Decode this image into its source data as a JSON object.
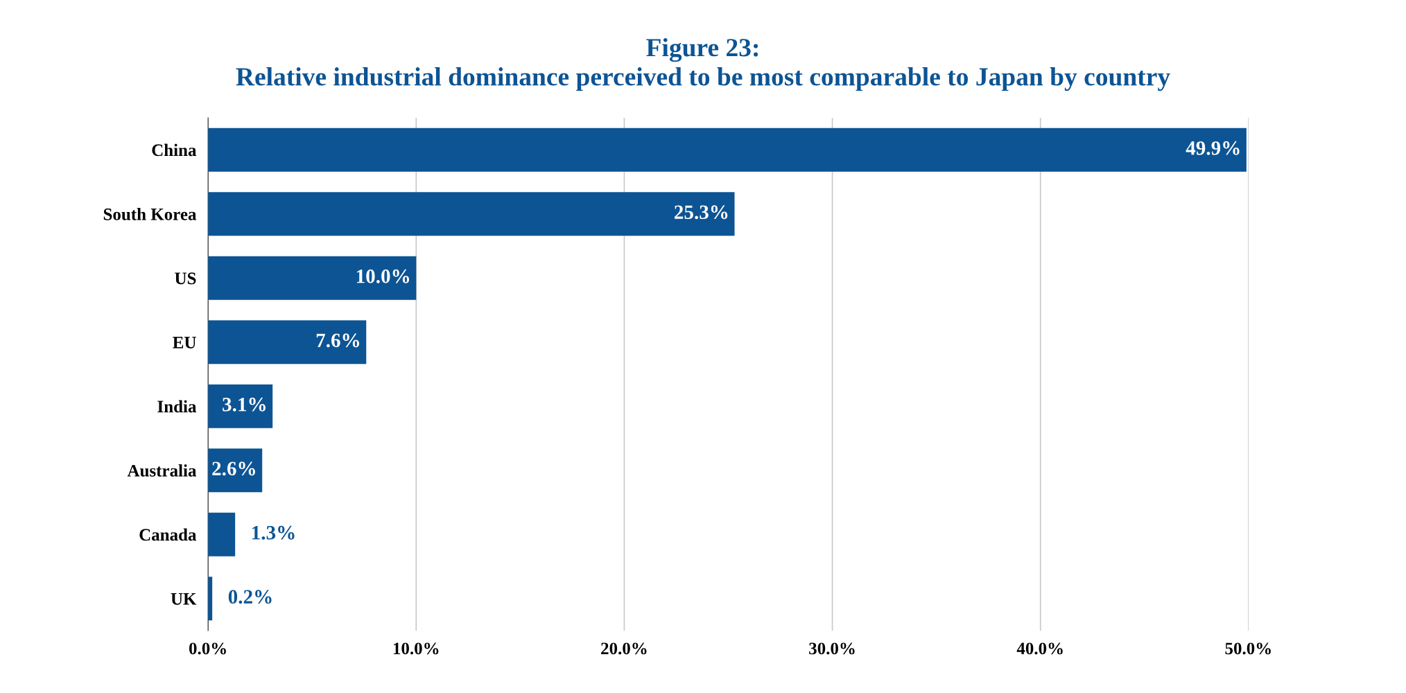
{
  "chart_data": {
    "type": "bar",
    "orientation": "horizontal",
    "title": "Figure 23:\nRelative industrial dominance perceived to be most comparable to Japan by country",
    "categories": [
      "China",
      "South Korea",
      "US",
      "EU",
      "India",
      "Australia",
      "Canada",
      "UK"
    ],
    "values": [
      49.9,
      25.3,
      10.0,
      7.6,
      3.1,
      2.6,
      1.3,
      0.2
    ],
    "value_labels": [
      "49.9%",
      "25.3%",
      "10.0%",
      "7.6%",
      "3.1%",
      "2.6%",
      "1.3%",
      "0.2%"
    ],
    "color": "#0d5494",
    "xlim": [
      0,
      50
    ],
    "xticks": [
      {
        "value": 0,
        "label": "0.0%"
      },
      {
        "value": 10,
        "label": "10.0%"
      },
      {
        "value": 20,
        "label": "20.0%"
      },
      {
        "value": 30,
        "label": "30.0%"
      },
      {
        "value": 40,
        "label": "40.0%"
      },
      {
        "value": 50,
        "label": "50.0%"
      }
    ],
    "grid": "x"
  }
}
